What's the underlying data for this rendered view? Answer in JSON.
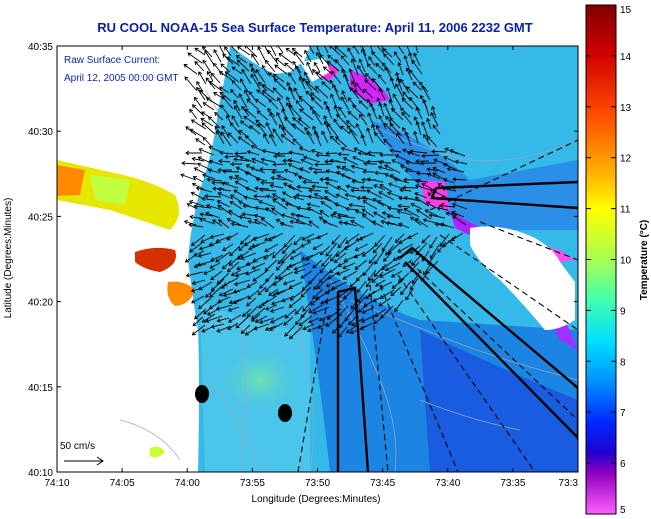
{
  "title": "RU COOL  NOAA-15  Sea Surface Temperature:  April 11, 2006 2232 GMT",
  "annotation": {
    "line1": "Raw Surface Current:",
    "line2": "April 12, 2005 00:00 GMT"
  },
  "axes": {
    "xlabel": "Longitude (Degrees:Minutes)",
    "ylabel": "Latitude (Degrees:Minutes)",
    "x_ticks": [
      "74:10",
      "74:05",
      "74:00",
      "73:55",
      "73:50",
      "73:45",
      "73:40",
      "73:35",
      "73:3"
    ],
    "y_ticks": [
      "40:35",
      "40:30",
      "40:25",
      "40:20",
      "40:15",
      "40:10"
    ]
  },
  "scale_arrow": {
    "label": "50 cm/s"
  },
  "colorbar": {
    "label": "Temperature (°C)",
    "ticks": [
      "15",
      "14",
      "13",
      "12",
      "11",
      "10",
      "9",
      "8",
      "7",
      "6",
      "5"
    ]
  },
  "colors": {
    "title": "#0a1fa8",
    "land": "#ffffff",
    "cold": "#ff00ff",
    "warm": "#c00000"
  }
}
